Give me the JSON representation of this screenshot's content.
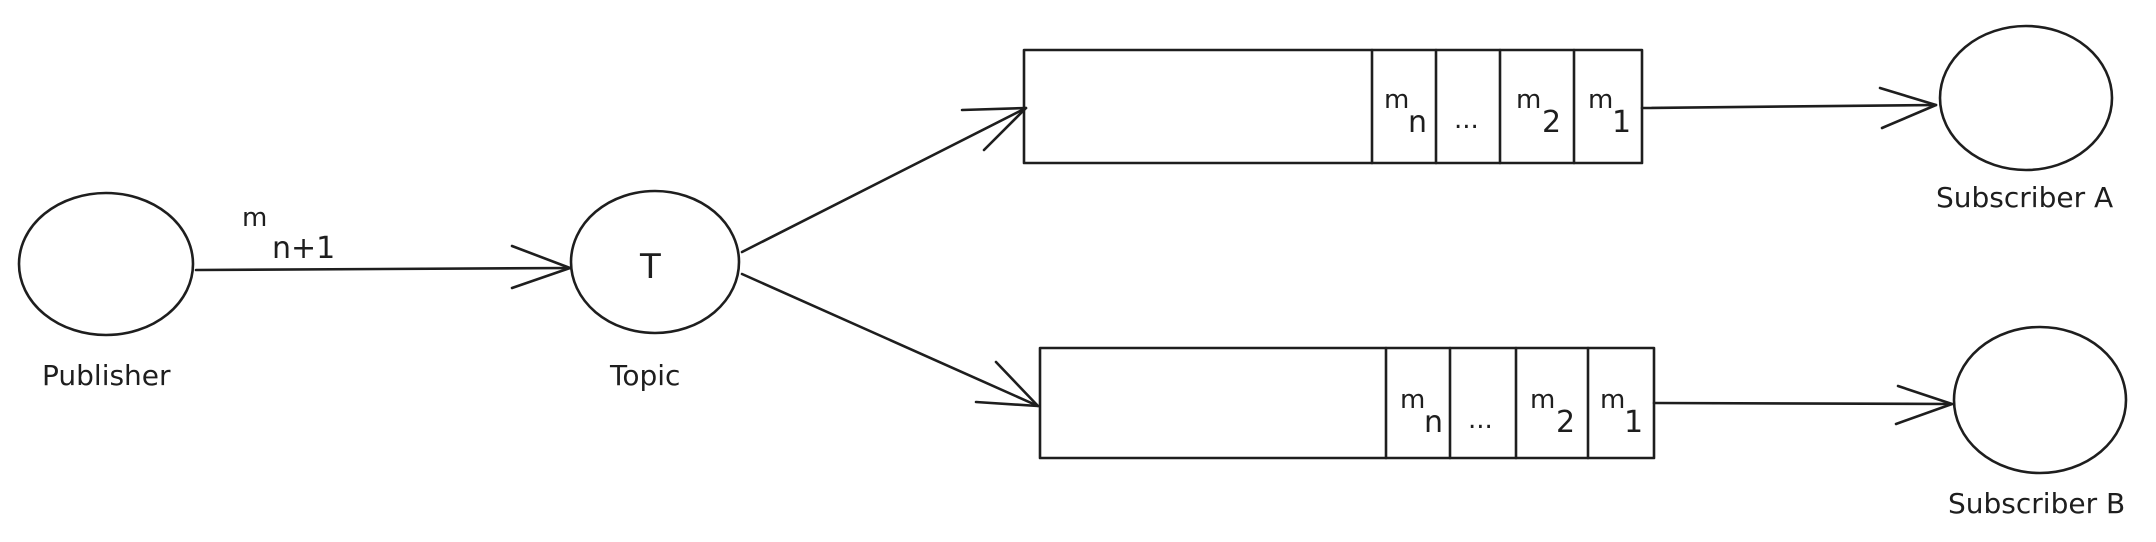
{
  "publisher": {
    "label": "Publisher"
  },
  "topic": {
    "label": "Topic",
    "symbol": "T"
  },
  "incoming_message": {
    "base": "m",
    "subscript": "n+1"
  },
  "queue_a": {
    "cells": [
      {
        "base": "m",
        "sub": "n"
      },
      {
        "base": "...",
        "sub": ""
      },
      {
        "base": "m",
        "sub": "2"
      },
      {
        "base": "m",
        "sub": "1"
      }
    ]
  },
  "queue_b": {
    "cells": [
      {
        "base": "m",
        "sub": "n"
      },
      {
        "base": "...",
        "sub": ""
      },
      {
        "base": "m",
        "sub": "2"
      },
      {
        "base": "m",
        "sub": "1"
      }
    ]
  },
  "subscriber_a": {
    "label": "Subscriber A"
  },
  "subscriber_b": {
    "label": "Subscriber B"
  }
}
